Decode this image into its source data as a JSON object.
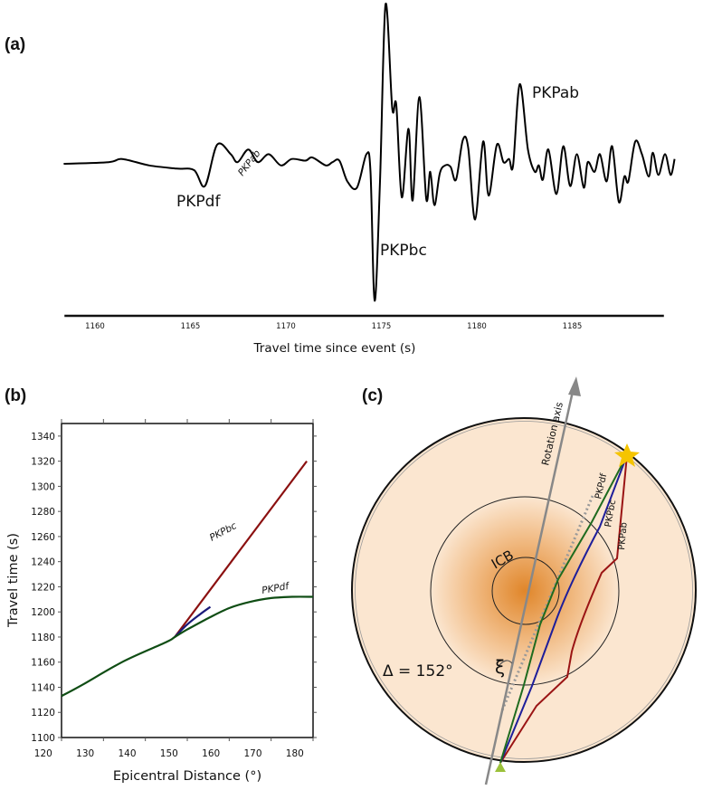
{
  "panels": {
    "a": "(a)",
    "b": "(b)",
    "c": "(c)"
  },
  "chart_data": [
    {
      "panel": "(a)",
      "type": "line",
      "xlabel": "Travel time since event (s)",
      "ylabel": "",
      "xticks": [
        1160,
        1165,
        1170,
        1175,
        1180,
        1185
      ],
      "xlim": [
        1158.4,
        1189.8
      ],
      "grid": false,
      "annotations": [
        {
          "text": "PKPdf",
          "x": 1166.1
        },
        {
          "text": "PKPbc",
          "x": 1175.0
        },
        {
          "text": "PKPab",
          "x": 1182.3
        }
      ],
      "series": [
        {
          "color": "#000000",
          "t": [
            1158.36,
            1160.71,
            1161.42,
            1162.84,
            1164.27,
            1165.19,
            1165.76,
            1166.4,
            1167.11,
            1167.47,
            1168.03,
            1168.53,
            1169.1,
            1169.74,
            1170.31,
            1171.02,
            1171.38,
            1172.09,
            1172.44,
            1172.8,
            1173.22,
            1173.72,
            1174.22,
            1174.43,
            1174.65,
            1174.93,
            1175.22,
            1175.57,
            1175.78,
            1176.07,
            1176.42,
            1176.64,
            1176.99,
            1177.35,
            1177.56,
            1177.78,
            1178.06,
            1178.34,
            1178.63,
            1178.91,
            1179.27,
            1179.55,
            1179.91,
            1180.33,
            1180.62,
            1181.05,
            1181.4,
            1181.69,
            1181.9,
            1182.25,
            1182.68,
            1183.04,
            1183.25,
            1183.46,
            1183.75,
            1184.17,
            1184.53,
            1184.89,
            1185.24,
            1185.6,
            1185.81,
            1186.17,
            1186.45,
            1186.8,
            1187.09,
            1187.44,
            1187.73,
            1187.94,
            1188.3,
            1188.65,
            1189.01,
            1189.22,
            1189.51,
            1189.86,
            1190.15,
            1190.36
          ],
          "amplitude": [
            0,
            0.01,
            0.03,
            -0.01,
            -0.03,
            -0.04,
            -0.14,
            0.12,
            0.06,
            0.01,
            0.09,
            0.01,
            0.06,
            -0.01,
            0.03,
            0.02,
            0.04,
            -0.01,
            0.01,
            0.02,
            -0.11,
            -0.15,
            0.06,
            -0.05,
            -0.86,
            -0.11,
            1.0,
            0.35,
            0.37,
            -0.21,
            0.22,
            -0.23,
            0.42,
            -0.22,
            -0.05,
            -0.26,
            -0.06,
            -0.01,
            -0.02,
            -0.1,
            0.15,
            0.1,
            -0.35,
            0.14,
            -0.2,
            0.12,
            0.01,
            0.03,
            -0.01,
            0.5,
            0.09,
            -0.05,
            -0.01,
            -0.1,
            0.09,
            -0.19,
            0.11,
            -0.14,
            0.06,
            -0.15,
            0.01,
            -0.05,
            0.06,
            -0.11,
            0.11,
            -0.24,
            -0.08,
            -0.11,
            0.14,
            0.06,
            -0.08,
            0.07,
            -0.07,
            0.06,
            -0.07,
            0.03
          ]
        }
      ]
    },
    {
      "panel": "(b)",
      "type": "line",
      "xlabel": "Epicentral Distance (°)",
      "ylabel": "Travel time (s)",
      "xlim": [
        125,
        185
      ],
      "ylim": [
        1100,
        1350
      ],
      "xticklabels": [
        120,
        130,
        140,
        150,
        160,
        170,
        180
      ],
      "yticklabels": [
        1100,
        1120,
        1140,
        1160,
        1180,
        1200,
        1220,
        1240,
        1260,
        1280,
        1300,
        1320,
        1340
      ],
      "grid": false,
      "series": [
        {
          "name": "PKPab",
          "color": "#8b1010",
          "x": [
            152,
            183.5
          ],
          "y": [
            1180,
            1320
          ]
        },
        {
          "name": "PKPbc",
          "color": "#1a1a7a",
          "x": [
            152,
            155,
            158,
            160.5
          ],
          "y": [
            1180,
            1190,
            1198,
            1204
          ]
        },
        {
          "name": "PKPdf",
          "color": "#0f4d14",
          "x": [
            125,
            130,
            140,
            150,
            152,
            155,
            160,
            165,
            170,
            175,
            180,
            185
          ],
          "y": [
            1133,
            1142,
            1161,
            1176,
            1180,
            1186,
            1195,
            1203,
            1208,
            1211,
            1212,
            1212
          ]
        }
      ]
    }
  ],
  "diagram": {
    "panel": "(c)",
    "labels": {
      "axis": "Rotation axis",
      "icb": "ICB",
      "angle": "ξ",
      "distance": "Δ = 152°",
      "pkpdf": "PKPdf",
      "pkpbc": "PKPbc",
      "pkpab": "PKPab"
    },
    "colors": {
      "mantle": "#fbe6d0",
      "core_center": "#e0862a",
      "pkpdf": "#1f6b1f",
      "pkpbc": "#1e1e9a",
      "pkpab": "#9a1414",
      "axis": "#888888",
      "source": "#f5c400",
      "receiver": "#9bc13a"
    }
  }
}
